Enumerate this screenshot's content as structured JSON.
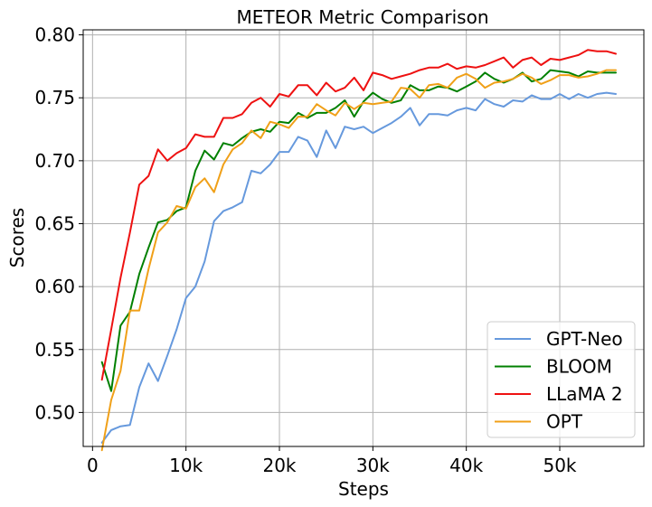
{
  "chart_data": {
    "type": "line",
    "title": "METEOR Metric Comparison",
    "xlabel": "Steps",
    "ylabel": "Scores",
    "xlim": [
      -1000,
      59000
    ],
    "ylim": [
      0.473,
      0.804
    ],
    "xticks": [
      0,
      10000,
      20000,
      30000,
      40000,
      50000
    ],
    "xtick_labels": [
      "0",
      "10k",
      "20k",
      "30k",
      "40k",
      "50k"
    ],
    "yticks": [
      0.5,
      0.55,
      0.6,
      0.65,
      0.7,
      0.75,
      0.8
    ],
    "ytick_labels": [
      "0.50",
      "0.55",
      "0.60",
      "0.65",
      "0.70",
      "0.75",
      "0.80"
    ],
    "grid": true,
    "legend_position": "lower-right",
    "x": [
      1000,
      2000,
      3000,
      4000,
      5000,
      6000,
      7000,
      8000,
      9000,
      10000,
      11000,
      12000,
      13000,
      14000,
      15000,
      16000,
      17000,
      18000,
      19000,
      20000,
      21000,
      22000,
      23000,
      24000,
      25000,
      26000,
      27000,
      28000,
      29000,
      30000,
      31000,
      32000,
      33000,
      34000,
      35000,
      36000,
      37000,
      38000,
      39000,
      40000,
      41000,
      42000,
      43000,
      44000,
      45000,
      46000,
      47000,
      48000,
      49000,
      50000,
      51000,
      52000,
      53000,
      54000,
      55000,
      56000
    ],
    "series": [
      {
        "name": "GPT-Neo",
        "color": "#6699dd",
        "values": [
          0.476,
          0.486,
          0.489,
          0.49,
          0.52,
          0.539,
          0.525,
          0.545,
          0.566,
          0.591,
          0.6,
          0.62,
          0.652,
          0.66,
          0.663,
          0.667,
          0.692,
          0.69,
          0.697,
          0.707,
          0.707,
          0.719,
          0.716,
          0.703,
          0.724,
          0.71,
          0.727,
          0.725,
          0.727,
          0.722,
          0.726,
          0.73,
          0.735,
          0.742,
          0.728,
          0.737,
          0.737,
          0.736,
          0.74,
          0.742,
          0.74,
          0.749,
          0.745,
          0.743,
          0.748,
          0.747,
          0.752,
          0.749,
          0.749,
          0.753,
          0.749,
          0.753,
          0.75,
          0.753,
          0.754,
          0.753
        ]
      },
      {
        "name": "BLOOM",
        "color": "#008000",
        "values": [
          0.54,
          0.517,
          0.569,
          0.58,
          0.61,
          0.631,
          0.651,
          0.653,
          0.66,
          0.663,
          0.692,
          0.708,
          0.701,
          0.714,
          0.712,
          0.718,
          0.723,
          0.725,
          0.723,
          0.731,
          0.73,
          0.738,
          0.734,
          0.738,
          0.738,
          0.742,
          0.748,
          0.735,
          0.747,
          0.754,
          0.749,
          0.746,
          0.748,
          0.76,
          0.756,
          0.756,
          0.759,
          0.758,
          0.755,
          0.759,
          0.763,
          0.77,
          0.765,
          0.762,
          0.765,
          0.77,
          0.763,
          0.765,
          0.772,
          0.771,
          0.77,
          0.767,
          0.771,
          0.77,
          0.77,
          0.77
        ]
      },
      {
        "name": "LLaMA 2",
        "color": "#ee1111",
        "values": [
          0.526,
          0.566,
          0.607,
          0.643,
          0.681,
          0.688,
          0.709,
          0.7,
          0.706,
          0.71,
          0.721,
          0.719,
          0.719,
          0.734,
          0.734,
          0.737,
          0.746,
          0.75,
          0.743,
          0.753,
          0.751,
          0.76,
          0.76,
          0.752,
          0.762,
          0.755,
          0.758,
          0.766,
          0.756,
          0.77,
          0.768,
          0.765,
          0.767,
          0.769,
          0.772,
          0.774,
          0.774,
          0.777,
          0.773,
          0.775,
          0.774,
          0.776,
          0.779,
          0.782,
          0.774,
          0.78,
          0.782,
          0.776,
          0.781,
          0.78,
          0.782,
          0.784,
          0.788,
          0.787,
          0.787,
          0.785
        ]
      },
      {
        "name": "OPT",
        "color": "#f0a018",
        "values": [
          0.47,
          0.51,
          0.533,
          0.581,
          0.581,
          0.614,
          0.643,
          0.651,
          0.664,
          0.662,
          0.679,
          0.686,
          0.675,
          0.697,
          0.709,
          0.714,
          0.724,
          0.718,
          0.731,
          0.729,
          0.726,
          0.735,
          0.735,
          0.745,
          0.74,
          0.736,
          0.746,
          0.741,
          0.746,
          0.745,
          0.746,
          0.747,
          0.758,
          0.757,
          0.75,
          0.76,
          0.761,
          0.758,
          0.766,
          0.769,
          0.765,
          0.758,
          0.762,
          0.763,
          0.765,
          0.769,
          0.766,
          0.761,
          0.764,
          0.768,
          0.768,
          0.766,
          0.767,
          0.769,
          0.772,
          0.772
        ]
      }
    ]
  }
}
